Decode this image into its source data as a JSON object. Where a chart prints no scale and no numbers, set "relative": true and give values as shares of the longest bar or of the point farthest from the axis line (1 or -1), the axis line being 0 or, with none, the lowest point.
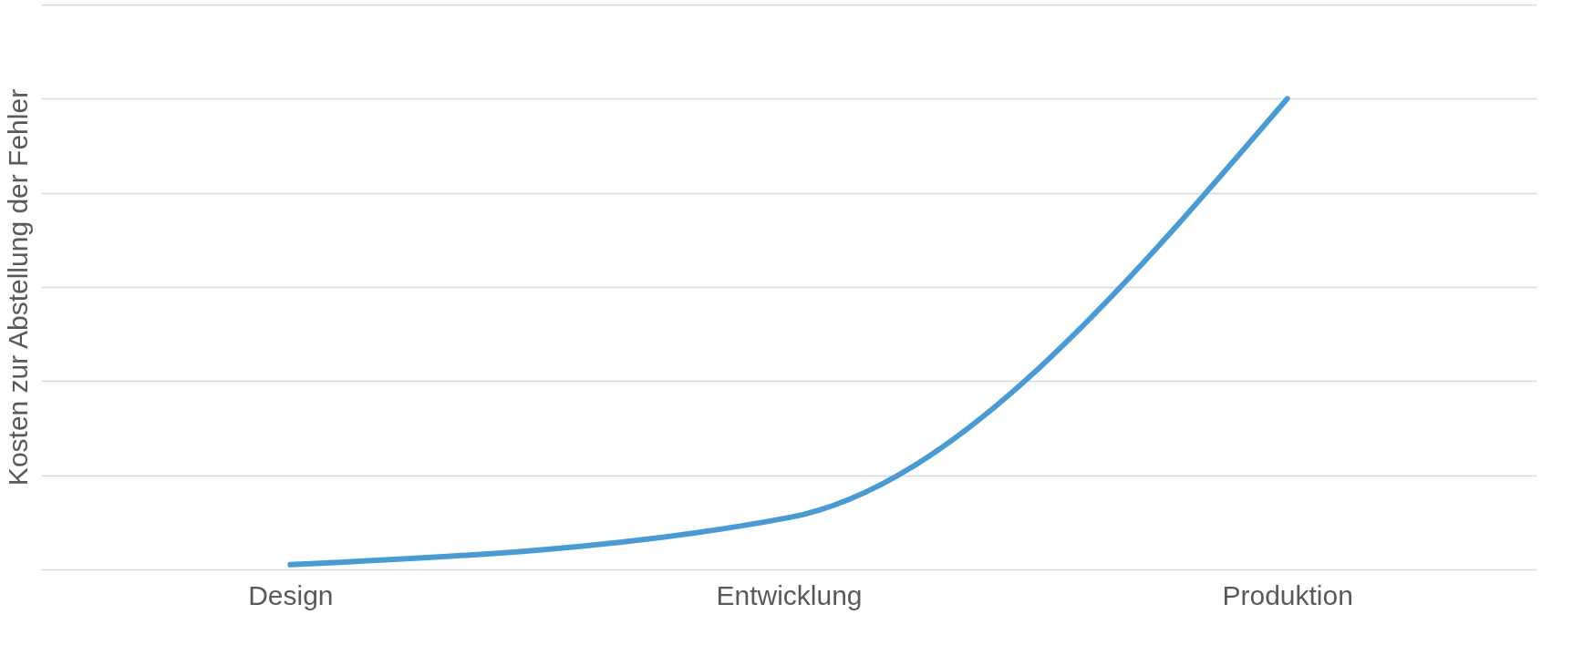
{
  "chart_data": {
    "type": "line",
    "relative": true,
    "ylabel": "Kosten zur Abstellung der Fehler",
    "categories": [
      "Design",
      "Entwicklung",
      "Produktion"
    ],
    "series": [
      {
        "color": "#4a9ad4",
        "values": [
          0.01,
          0.11,
          1
        ]
      }
    ],
    "grid": "y",
    "marker": "none",
    "line_style": "solid"
  }
}
